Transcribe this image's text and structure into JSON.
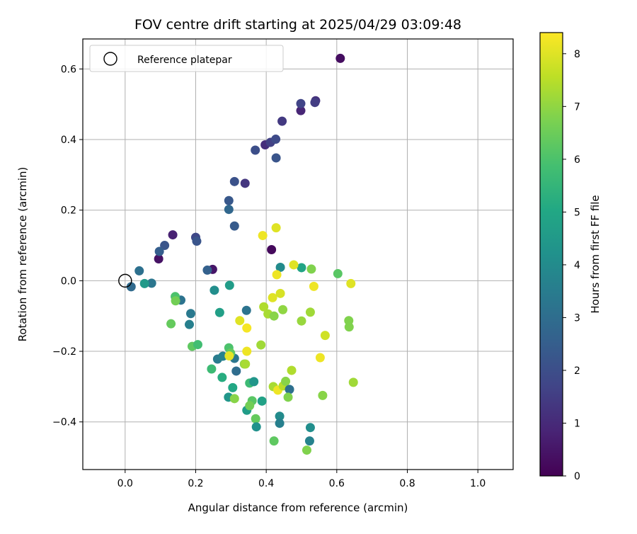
{
  "chart_data": {
    "type": "scatter",
    "title": "FOV centre drift starting at 2025/04/29 03:09:48",
    "xlabel": "Angular distance from reference (arcmin)",
    "ylabel": "Rotation from reference (arcmin)",
    "xlim": [
      -0.12,
      1.1
    ],
    "ylim": [
      -0.535,
      0.685
    ],
    "xticks": [
      0.0,
      0.2,
      0.4,
      0.6,
      0.8,
      1.0
    ],
    "xtick_labels": [
      "0.0",
      "0.2",
      "0.4",
      "0.6",
      "0.8",
      "1.0"
    ],
    "yticks": [
      -0.4,
      -0.2,
      0.0,
      0.2,
      0.4,
      0.6
    ],
    "ytick_labels": [
      "−0.4",
      "−0.2",
      "0.0",
      "0.2",
      "0.4",
      "0.6"
    ],
    "grid": true,
    "legend": {
      "placement": "upper-left",
      "entries": [
        "Reference platepar"
      ]
    },
    "reference_point": {
      "x": 0.0,
      "y": 0.0,
      "label": "Reference platepar"
    },
    "colorbar": {
      "label": "Hours from first FF file",
      "colormap": "viridis",
      "range": [
        0,
        8.4
      ],
      "ticks": [
        0,
        1,
        2,
        3,
        4,
        5,
        6,
        7,
        8
      ],
      "tick_labels": [
        "0",
        "1",
        "2",
        "3",
        "4",
        "5",
        "6",
        "7",
        "8"
      ]
    },
    "series": [
      {
        "points": [
          {
            "x": 0.61,
            "y": 0.63,
            "c": 0.3
          },
          {
            "x": 0.095,
            "y": 0.062,
            "c": 0.4
          },
          {
            "x": 0.135,
            "y": 0.13,
            "c": 0.8
          },
          {
            "x": 0.248,
            "y": 0.032,
            "c": 0.5
          },
          {
            "x": 0.415,
            "y": 0.088,
            "c": 0.2
          },
          {
            "x": 0.498,
            "y": 0.482,
            "c": 0.9
          },
          {
            "x": 0.54,
            "y": 0.51,
            "c": 1.2
          },
          {
            "x": 0.538,
            "y": 0.505,
            "c": 1.5
          },
          {
            "x": 0.498,
            "y": 0.502,
            "c": 1.7
          },
          {
            "x": 0.445,
            "y": 0.452,
            "c": 1.4
          },
          {
            "x": 0.397,
            "y": 0.385,
            "c": 1.1
          },
          {
            "x": 0.412,
            "y": 0.392,
            "c": 1.6
          },
          {
            "x": 0.427,
            "y": 0.401,
            "c": 1.9
          },
          {
            "x": 0.369,
            "y": 0.37,
            "c": 2.0
          },
          {
            "x": 0.428,
            "y": 0.348,
            "c": 2.2
          },
          {
            "x": 0.34,
            "y": 0.276,
            "c": 1.3
          },
          {
            "x": 0.31,
            "y": 0.281,
            "c": 2.1
          },
          {
            "x": 0.294,
            "y": 0.227,
            "c": 2.3
          },
          {
            "x": 0.294,
            "y": 0.202,
            "c": 2.8
          },
          {
            "x": 0.31,
            "y": 0.155,
            "c": 2.4
          },
          {
            "x": 0.2,
            "y": 0.123,
            "c": 1.8
          },
          {
            "x": 0.203,
            "y": 0.112,
            "c": 2.2
          },
          {
            "x": 0.112,
            "y": 0.1,
            "c": 2.2
          },
          {
            "x": 0.097,
            "y": 0.083,
            "c": 2.5
          },
          {
            "x": 0.233,
            "y": 0.03,
            "c": 2.6
          },
          {
            "x": 0.04,
            "y": 0.028,
            "c": 3.1
          },
          {
            "x": 0.017,
            "y": -0.017,
            "c": 2.9
          },
          {
            "x": 0.075,
            "y": -0.007,
            "c": 3.3
          },
          {
            "x": 0.055,
            "y": -0.008,
            "c": 4.5
          },
          {
            "x": 0.253,
            "y": -0.027,
            "c": 4.1
          },
          {
            "x": 0.296,
            "y": -0.013,
            "c": 4.6
          },
          {
            "x": 0.158,
            "y": -0.055,
            "c": 3.2
          },
          {
            "x": 0.186,
            "y": -0.093,
            "c": 3.4
          },
          {
            "x": 0.182,
            "y": -0.124,
            "c": 3.6
          },
          {
            "x": 0.268,
            "y": -0.09,
            "c": 4.7
          },
          {
            "x": 0.344,
            "y": -0.084,
            "c": 3.2
          },
          {
            "x": 0.44,
            "y": 0.038,
            "c": 4.0
          },
          {
            "x": 0.5,
            "y": 0.037,
            "c": 4.9
          },
          {
            "x": 0.528,
            "y": 0.033,
            "c": 6.8
          },
          {
            "x": 0.603,
            "y": 0.02,
            "c": 6.2
          },
          {
            "x": 0.142,
            "y": -0.045,
            "c": 6.0
          },
          {
            "x": 0.143,
            "y": -0.057,
            "c": 6.6
          },
          {
            "x": 0.13,
            "y": -0.122,
            "c": 6.4
          },
          {
            "x": 0.19,
            "y": -0.186,
            "c": 6.3
          },
          {
            "x": 0.206,
            "y": -0.181,
            "c": 5.8
          },
          {
            "x": 0.262,
            "y": -0.222,
            "c": 3.5
          },
          {
            "x": 0.277,
            "y": -0.214,
            "c": 3.7
          },
          {
            "x": 0.31,
            "y": -0.22,
            "c": 3.3
          },
          {
            "x": 0.315,
            "y": -0.256,
            "c": 3.0
          },
          {
            "x": 0.245,
            "y": -0.25,
            "c": 5.7
          },
          {
            "x": 0.275,
            "y": -0.274,
            "c": 5.2
          },
          {
            "x": 0.294,
            "y": -0.19,
            "c": 6.0
          },
          {
            "x": 0.299,
            "y": -0.205,
            "c": 6.4
          },
          {
            "x": 0.295,
            "y": -0.213,
            "c": 8.1
          },
          {
            "x": 0.338,
            "y": -0.236,
            "c": 7.0
          },
          {
            "x": 0.341,
            "y": -0.236,
            "c": 7.3
          },
          {
            "x": 0.345,
            "y": -0.2,
            "c": 8.2
          },
          {
            "x": 0.325,
            "y": -0.113,
            "c": 8.0
          },
          {
            "x": 0.345,
            "y": -0.134,
            "c": 8.3
          },
          {
            "x": 0.385,
            "y": -0.182,
            "c": 7.2
          },
          {
            "x": 0.393,
            "y": -0.074,
            "c": 7.4
          },
          {
            "x": 0.405,
            "y": -0.094,
            "c": 7.3
          },
          {
            "x": 0.422,
            "y": -0.1,
            "c": 6.9
          },
          {
            "x": 0.447,
            "y": -0.082,
            "c": 7.0
          },
          {
            "x": 0.418,
            "y": -0.048,
            "c": 8.0
          },
          {
            "x": 0.44,
            "y": -0.036,
            "c": 7.9
          },
          {
            "x": 0.43,
            "y": 0.017,
            "c": 8.2
          },
          {
            "x": 0.478,
            "y": 0.045,
            "c": 8.0
          },
          {
            "x": 0.39,
            "y": 0.128,
            "c": 8.2
          },
          {
            "x": 0.428,
            "y": 0.15,
            "c": 8.0
          },
          {
            "x": 0.535,
            "y": -0.016,
            "c": 8.2
          },
          {
            "x": 0.525,
            "y": -0.089,
            "c": 7.2
          },
          {
            "x": 0.5,
            "y": -0.114,
            "c": 7.1
          },
          {
            "x": 0.567,
            "y": -0.155,
            "c": 7.8
          },
          {
            "x": 0.553,
            "y": -0.218,
            "c": 8.2
          },
          {
            "x": 0.64,
            "y": -0.008,
            "c": 8.0
          },
          {
            "x": 0.634,
            "y": -0.113,
            "c": 6.8
          },
          {
            "x": 0.635,
            "y": -0.131,
            "c": 6.8
          },
          {
            "x": 0.647,
            "y": -0.288,
            "c": 7.2
          },
          {
            "x": 0.305,
            "y": -0.303,
            "c": 5.0
          },
          {
            "x": 0.293,
            "y": -0.33,
            "c": 4.4
          },
          {
            "x": 0.31,
            "y": -0.334,
            "c": 6.9
          },
          {
            "x": 0.353,
            "y": -0.29,
            "c": 5.7
          },
          {
            "x": 0.365,
            "y": -0.286,
            "c": 4.4
          },
          {
            "x": 0.36,
            "y": -0.34,
            "c": 6.2
          },
          {
            "x": 0.388,
            "y": -0.341,
            "c": 4.8
          },
          {
            "x": 0.345,
            "y": -0.367,
            "c": 4.6
          },
          {
            "x": 0.353,
            "y": -0.354,
            "c": 6.6
          },
          {
            "x": 0.37,
            "y": -0.391,
            "c": 6.4
          },
          {
            "x": 0.372,
            "y": -0.414,
            "c": 4.2
          },
          {
            "x": 0.42,
            "y": -0.3,
            "c": 7.3
          },
          {
            "x": 0.433,
            "y": -0.31,
            "c": 8.2
          },
          {
            "x": 0.448,
            "y": -0.298,
            "c": 7.5
          },
          {
            "x": 0.455,
            "y": -0.285,
            "c": 6.9
          },
          {
            "x": 0.466,
            "y": -0.308,
            "c": 3.1
          },
          {
            "x": 0.462,
            "y": -0.33,
            "c": 6.8
          },
          {
            "x": 0.472,
            "y": -0.254,
            "c": 7.4
          },
          {
            "x": 0.438,
            "y": -0.384,
            "c": 4.0
          },
          {
            "x": 0.438,
            "y": -0.404,
            "c": 3.6
          },
          {
            "x": 0.422,
            "y": -0.454,
            "c": 6.3
          },
          {
            "x": 0.525,
            "y": -0.416,
            "c": 4.1
          },
          {
            "x": 0.523,
            "y": -0.454,
            "c": 3.7
          },
          {
            "x": 0.515,
            "y": -0.48,
            "c": 6.8
          },
          {
            "x": 0.56,
            "y": -0.325,
            "c": 6.9
          }
        ]
      }
    ]
  }
}
